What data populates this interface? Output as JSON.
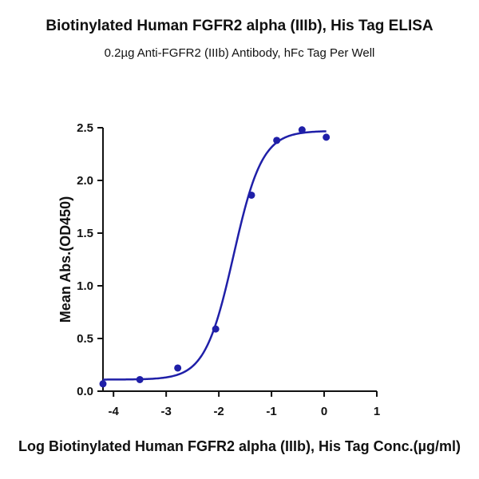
{
  "chart_data": {
    "type": "scatter",
    "title": "Biotinylated Human FGFR2 alpha (IIIb), His Tag ELISA",
    "subtitle": "0.2µg Anti-FGFR2 (IIIb) Antibody, hFc Tag Per Well",
    "xlabel": "Log Biotinylated Human FGFR2 alpha (IIIb), His Tag Conc.(µg/ml)",
    "ylabel": "Mean Abs.(OD450)",
    "xlim": [
      -4.2,
      1
    ],
    "ylim": [
      0,
      2.5
    ],
    "x_ticks": [
      "-4",
      "-3",
      "-2",
      "-1",
      "0",
      "1"
    ],
    "y_ticks": [
      "0.0",
      "0.5",
      "1.0",
      "1.5",
      "2.0",
      "2.5"
    ],
    "grid": false,
    "series": [
      {
        "points": [
          {
            "x": -4.2,
            "y": 0.07
          },
          {
            "x": -3.5,
            "y": 0.11
          },
          {
            "x": -2.78,
            "y": 0.22
          },
          {
            "x": -2.06,
            "y": 0.59
          },
          {
            "x": -1.38,
            "y": 1.86
          },
          {
            "x": -0.9,
            "y": 2.38
          },
          {
            "x": -0.42,
            "y": 2.48
          },
          {
            "x": 0.04,
            "y": 2.41
          }
        ],
        "fit": {
          "model": "4PL",
          "bottom": 0.11,
          "top": 2.47,
          "log_ec50": -1.72,
          "hill_slope": 1.6
        },
        "color": "#1f1fa8"
      }
    ]
  }
}
